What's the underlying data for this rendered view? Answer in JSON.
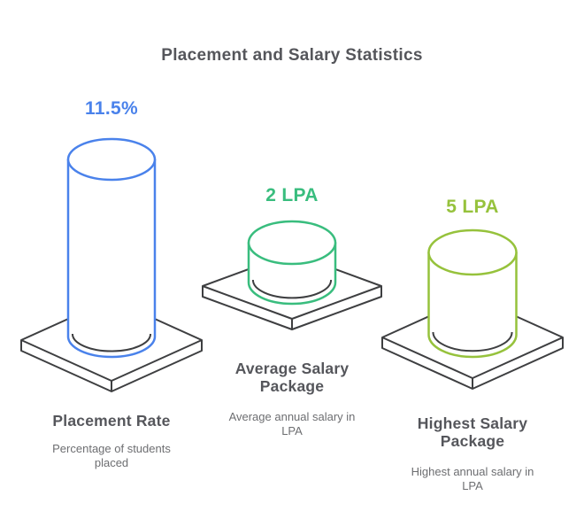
{
  "chart_data": {
    "type": "bar",
    "style": "isometric-cylinder-pictorial",
    "title": "Placement and Salary Statistics",
    "legend": "none",
    "grid": "off",
    "platform_color": "#3e3f41",
    "shadow_color": "#3e3f41",
    "background_color": "#ffffff",
    "text_colors": {
      "title": "#55565b",
      "heading": "#55565b",
      "subtitle": "#6d6e71"
    },
    "items": [
      {
        "id": "placement-rate",
        "value": 11.5,
        "unit": "%",
        "value_label": "11.5%",
        "label": "Placement Rate",
        "description": "Percentage of students\nplaced",
        "color": "#4a82eb"
      },
      {
        "id": "average-salary",
        "value": 2,
        "unit": "LPA",
        "value_label": "2 LPA",
        "label": "Average Salary\nPackage",
        "description": "Average annual salary in\nLPA",
        "color": "#39bd7e"
      },
      {
        "id": "highest-salary",
        "value": 5,
        "unit": "LPA",
        "value_label": "5 LPA",
        "label": "Highest Salary\nPackage",
        "description": "Highest annual salary in\nLPA",
        "color": "#96c23c"
      }
    ]
  }
}
